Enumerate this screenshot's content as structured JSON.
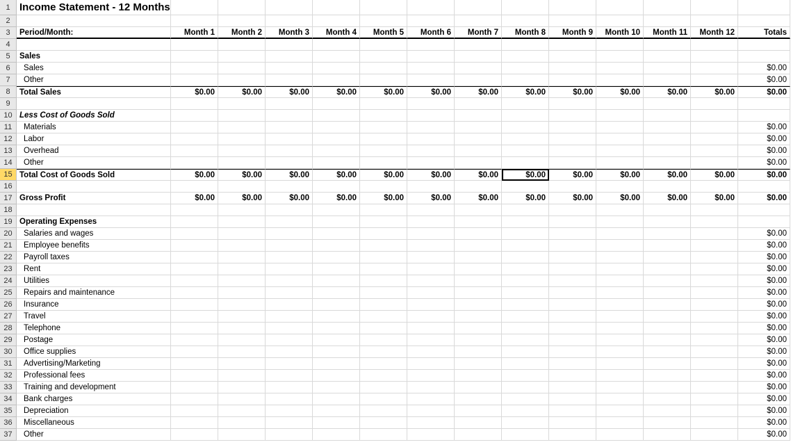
{
  "title": "Income Statement - 12 Months",
  "header": {
    "period_label": "Period/Month:",
    "months": [
      "Month 1",
      "Month 2",
      "Month 3",
      "Month 4",
      "Month 5",
      "Month 6",
      "Month 7",
      "Month 8",
      "Month 9",
      "Month 10",
      "Month 11",
      "Month 12"
    ],
    "totals_label": "Totals"
  },
  "zero": "$0.00",
  "sections": {
    "sales": {
      "heading": "Sales",
      "items": [
        "Sales",
        "Other"
      ],
      "total_label": "Total Sales"
    },
    "cogs": {
      "heading": "Less Cost of Goods Sold",
      "items": [
        "Materials",
        "Labor",
        "Overhead",
        "Other"
      ],
      "total_label": "Total Cost of Goods Sold"
    },
    "gross_profit_label": "Gross Profit",
    "opex": {
      "heading": "Operating Expenses",
      "items": [
        "Salaries and wages",
        "Employee benefits",
        "Payroll taxes",
        "Rent",
        "Utilities",
        "Repairs and maintenance",
        "Insurance",
        "Travel",
        "Telephone",
        "Postage",
        "Office supplies",
        "Advertising/Marketing",
        "Professional fees",
        "Training and development",
        "Bank charges",
        "Depreciation",
        "Miscellaneous",
        "Other"
      ]
    }
  },
  "selected_cell": {
    "row": 15,
    "col": 8
  },
  "styling": {
    "grid_color": "#d9d9d9",
    "rownum_bg": "#e8e8e8",
    "highlight_row_bg": "#ffd966",
    "font_family": "Arial",
    "base_font_size": 12,
    "title_font_size": 15,
    "border_heavy": "#000000"
  }
}
